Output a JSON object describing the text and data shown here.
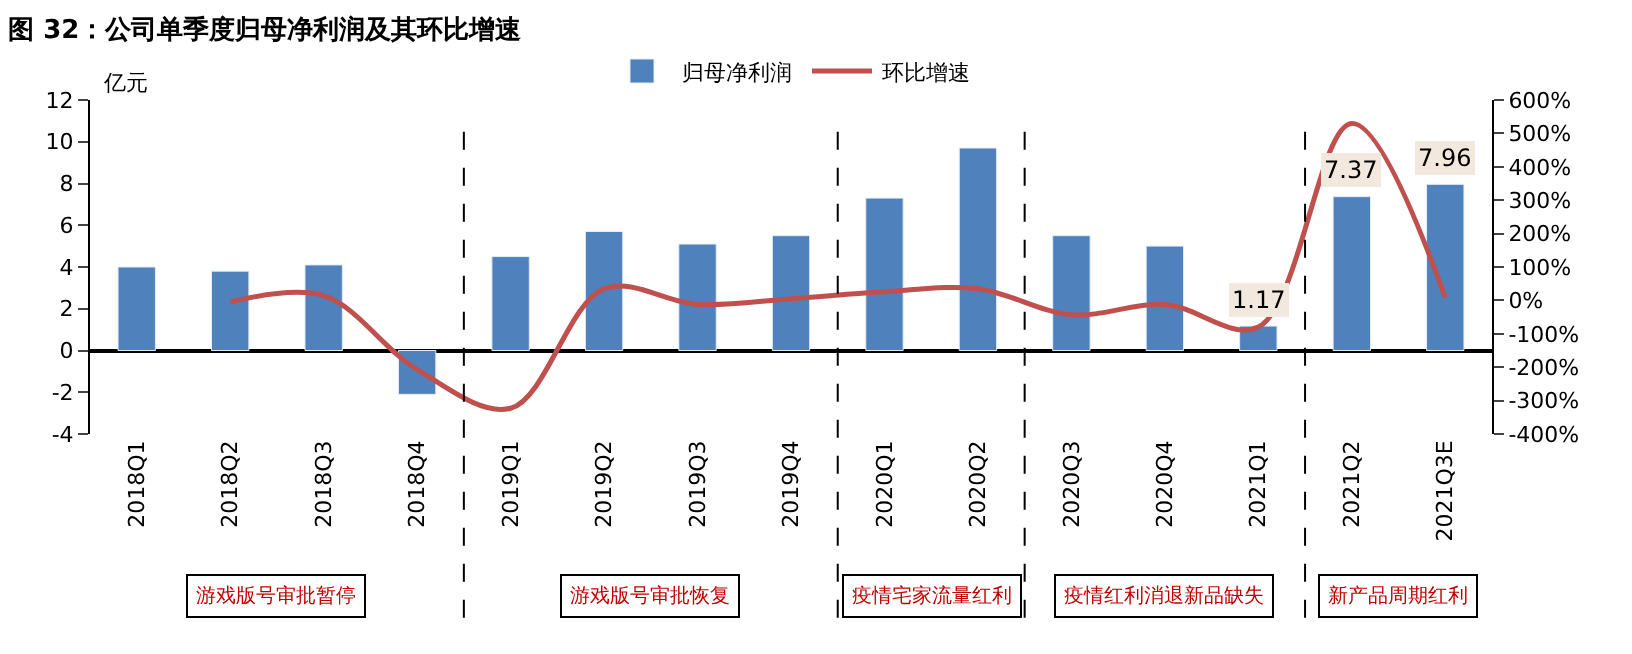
{
  "chart_data": {
    "type": "bar",
    "title": "图 32：公司单季度归母净利润及其环比增速",
    "ylabel": "亿元",
    "categories": [
      "2018Q1",
      "2018Q2",
      "2018Q3",
      "2018Q4",
      "2019Q1",
      "2019Q2",
      "2019Q3",
      "2019Q4",
      "2020Q1",
      "2020Q2",
      "2020Q3",
      "2020Q4",
      "2021Q1",
      "2021Q2",
      "2021Q3E"
    ],
    "series": [
      {
        "name": "归母净利润",
        "color": "#4f81bd",
        "values": [
          4.0,
          3.8,
          4.1,
          -2.1,
          4.5,
          5.7,
          5.1,
          5.5,
          7.3,
          9.7,
          5.5,
          5.0,
          1.17,
          7.37,
          7.96
        ],
        "value_labels": [
          null,
          null,
          null,
          null,
          null,
          null,
          null,
          null,
          null,
          null,
          null,
          null,
          "1.17",
          "7.37",
          "7.96"
        ]
      },
      {
        "name": "环比增速",
        "type": "line",
        "axis": "y2",
        "color": "#c0504d",
        "values": [
          null,
          -5,
          14,
          -207,
          -323,
          35,
          -12,
          5,
          26,
          35,
          -43,
          -12,
          -80,
          530,
          8
        ]
      }
    ],
    "ylim": [
      -4,
      12
    ],
    "yticks": [
      -4,
      -2,
      0,
      2,
      4,
      6,
      8,
      10,
      12
    ],
    "y2lim": [
      -400,
      600
    ],
    "y2ticks": [
      {
        "value": -400,
        "label": "-400%"
      },
      {
        "value": -300,
        "label": "-300%"
      },
      {
        "value": -200,
        "label": "-200%"
      },
      {
        "value": -100,
        "label": "-100%"
      },
      {
        "value": 0,
        "label": "0%"
      },
      {
        "value": 100,
        "label": "100%"
      },
      {
        "value": 200,
        "label": "200%"
      },
      {
        "value": 300,
        "label": "300%"
      },
      {
        "value": 400,
        "label": "400%"
      },
      {
        "value": 500,
        "label": "500%"
      },
      {
        "value": 600,
        "label": "600%"
      }
    ],
    "annotations": [
      "游戏版号审批暂停",
      "游戏版号审批恢复",
      "疫情宅家流量红利",
      "疫情红利消退新品缺失",
      "新产品周期红利"
    ],
    "legend": "top"
  }
}
